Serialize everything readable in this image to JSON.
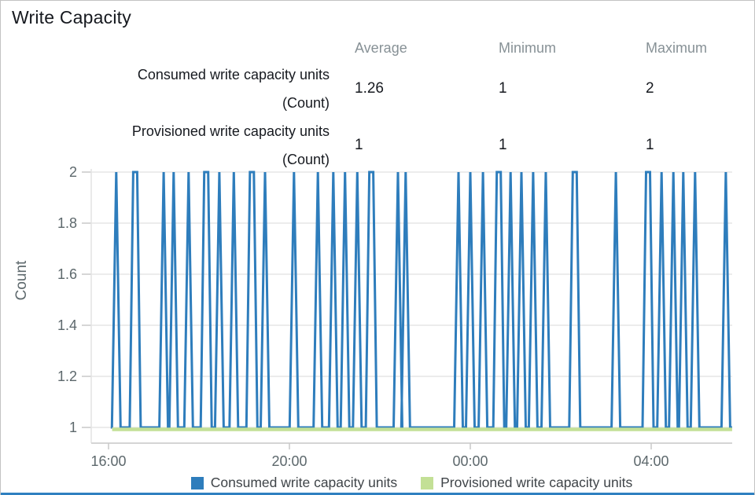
{
  "widget": {
    "title": "Write Capacity"
  },
  "stats_table": {
    "columns": [
      "Average",
      "Minimum",
      "Maximum"
    ],
    "rows": [
      {
        "label": "Consumed write capacity units",
        "unit": "(Count)",
        "average": "1.26",
        "minimum": "1",
        "maximum": "2"
      },
      {
        "label": "Provisioned write capacity units",
        "unit": "(Count)",
        "average": "1",
        "minimum": "1",
        "maximum": "1"
      }
    ]
  },
  "legend": {
    "items": [
      {
        "label": "Consumed write capacity units",
        "color": "#2e7dbc"
      },
      {
        "label": "Provisioned write capacity units",
        "color": "#c3e096"
      }
    ]
  },
  "colors": {
    "consumed_blue": "#2e7dbc",
    "provisioned_green": "#c3e096",
    "bottom_bar_blue": "#2f80c0",
    "gridline": "#ececec",
    "axis_line": "#d5d5d5",
    "tick": "#c9c9c9",
    "axis_text": "#5d686c",
    "muted_header": "#879196"
  },
  "chart_data": {
    "type": "line",
    "title": "Write Capacity",
    "xlabel": "",
    "ylabel": "Count",
    "ylim": [
      1,
      2
    ],
    "y_ticks": [
      1,
      1.2,
      1.4,
      1.6,
      1.8,
      2
    ],
    "x_ticks": [
      {
        "label": "16:00",
        "hour": 16
      },
      {
        "label": "20:00",
        "hour": 20
      },
      {
        "label": "00:00",
        "hour": 24
      },
      {
        "label": "04:00",
        "hour": 28
      }
    ],
    "grid": "horizontal-only",
    "legend_position": "bottom",
    "data_start_h": 16.08,
    "data_end_h": 29.79,
    "series": [
      {
        "name": "Consumed write capacity units",
        "color": "#2e7dbc",
        "baseline_value": 1,
        "peak_value": 2,
        "period_minutes": 5,
        "spike_times_h": [
          16.17,
          17.22,
          17.44,
          17.77,
          18.45,
          18.77,
          19.46,
          20.1,
          20.63,
          20.97,
          21.23,
          21.5,
          22.4,
          22.57,
          23.74,
          24.0,
          24.28,
          24.89,
          25.13,
          25.39,
          25.67,
          27.22,
          28.23,
          28.49,
          28.71,
          28.97,
          29.65
        ],
        "double_spike_times_h": [
          16.59,
          18.16,
          19.17,
          21.81,
          24.63,
          26.31,
          27.93
        ]
      },
      {
        "name": "Provisioned write capacity units",
        "color": "#c3e096",
        "constant_value": 1
      }
    ]
  }
}
